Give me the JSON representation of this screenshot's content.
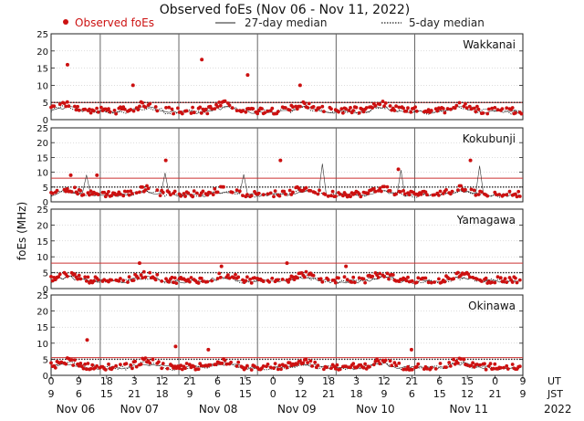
{
  "chart_data": {
    "type": "scatter",
    "title": "Observed foEs (Nov 06 - Nov 11, 2022)",
    "ylabel": "foEs (MHz)",
    "ylim": [
      0,
      25
    ],
    "yticks": [
      0,
      5,
      10,
      15,
      20,
      25
    ],
    "legend": {
      "observed": "Observed foEs",
      "median27": "27-day median",
      "median5": "5-day median"
    },
    "x_hours": [
      0,
      144
    ],
    "day_boundaries_hours": [
      15,
      39,
      63,
      87,
      111
    ],
    "ut_tick_labels": [
      "0",
      "9",
      "18",
      "3",
      "12",
      "21",
      "6",
      "15",
      "0",
      "9",
      "18",
      "3",
      "12",
      "21",
      "6",
      "15",
      "0",
      "9"
    ],
    "jst_tick_labels": [
      "9",
      "6",
      "15",
      "21",
      "18",
      "9",
      "6",
      "15",
      "0",
      "12",
      "21",
      "18",
      "9",
      "6",
      "15",
      "12",
      "21",
      "9"
    ],
    "ut_label": "UT",
    "jst_label": "JST",
    "days": [
      "Nov 06",
      "Nov 07",
      "Nov 08",
      "Nov 09",
      "Nov 10",
      "Nov 11"
    ],
    "year": "2022",
    "colors": {
      "observed": "#cc1111",
      "median_line": "#cc3333",
      "grid": "#bbbbbb",
      "axis": "#222222"
    },
    "stations": [
      {
        "name": "Wakkanai",
        "median27": 5.0,
        "outliers": [
          [
            5,
            16
          ],
          [
            25,
            10
          ],
          [
            46,
            17.5
          ],
          [
            60,
            13
          ],
          [
            76,
            10
          ]
        ]
      },
      {
        "name": "Kokubunji",
        "median27": 8.0,
        "outliers": [
          [
            6,
            9
          ],
          [
            14,
            9
          ],
          [
            35,
            14
          ],
          [
            70,
            14
          ],
          [
            106,
            11
          ],
          [
            128,
            14
          ]
        ]
      },
      {
        "name": "Yamagawa",
        "median27": 8.0,
        "outliers": [
          [
            27,
            8
          ],
          [
            52,
            7
          ],
          [
            72,
            8
          ],
          [
            90,
            7
          ]
        ]
      },
      {
        "name": "Okinawa",
        "median27": 5.5,
        "outliers": [
          [
            11,
            11
          ],
          [
            38,
            9
          ],
          [
            48,
            8
          ],
          [
            110,
            8
          ]
        ]
      }
    ]
  }
}
